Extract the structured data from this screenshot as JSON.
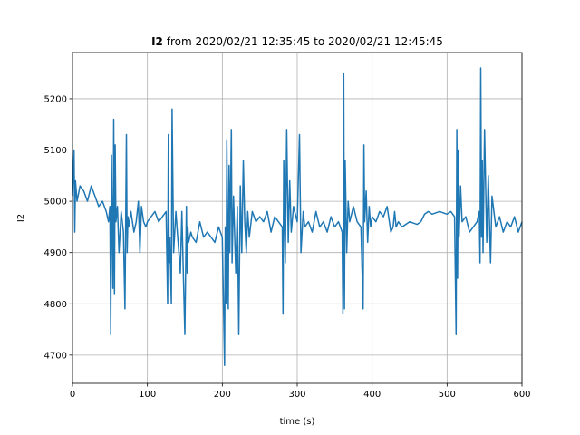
{
  "chart_data": {
    "type": "line",
    "title_bold": "I2",
    "title_rest": " from 2020/02/21 12:35:45 to 2020/02/21 12:45:45",
    "xlabel": "time (s)",
    "ylabel": "I2",
    "xlim": [
      0,
      600
    ],
    "ylim": [
      4645,
      5290
    ],
    "grid": true,
    "x_ticks": [
      0,
      100,
      200,
      300,
      400,
      500,
      600
    ],
    "x_tick_labels": [
      "0",
      "100",
      "200",
      "300",
      "400",
      "500",
      "600"
    ],
    "y_ticks": [
      4700,
      4800,
      4900,
      5000,
      5100,
      5200
    ],
    "y_tick_labels": [
      "4700",
      "4800",
      "4900",
      "5000",
      "5100",
      "5200"
    ],
    "series": [
      {
        "color": "#1f77b4",
        "x": [
          0,
          2,
          3,
          4,
          6,
          10,
          15,
          20,
          25,
          30,
          35,
          40,
          45,
          48,
          50,
          51,
          52,
          54,
          55,
          56,
          57,
          58,
          60,
          62,
          65,
          68,
          70,
          72,
          73,
          74,
          75,
          78,
          82,
          85,
          88,
          90,
          92,
          95,
          98,
          100,
          105,
          110,
          115,
          120,
          125,
          127,
          128,
          129,
          130,
          132,
          133,
          135,
          138,
          140,
          142,
          144,
          146,
          148,
          150,
          152,
          153,
          154,
          155,
          158,
          160,
          165,
          170,
          175,
          180,
          185,
          190,
          195,
          200,
          203,
          204,
          205,
          206,
          208,
          209,
          210,
          212,
          213,
          215,
          218,
          220,
          222,
          224,
          226,
          228,
          230,
          232,
          234,
          236,
          240,
          245,
          250,
          255,
          260,
          265,
          270,
          275,
          280,
          281,
          282,
          284,
          286,
          288,
          290,
          292,
          295,
          300,
          303,
          305,
          308,
          310,
          315,
          320,
          325,
          330,
          335,
          340,
          345,
          350,
          355,
          360,
          361,
          362,
          363,
          364,
          366,
          368,
          370,
          375,
          380,
          385,
          388,
          389,
          390,
          392,
          394,
          396,
          398,
          400,
          405,
          410,
          415,
          420,
          425,
          428,
          430,
          432,
          435,
          440,
          450,
          460,
          465,
          470,
          475,
          480,
          490,
          500,
          505,
          510,
          512,
          513,
          514,
          515,
          516,
          518,
          520,
          525,
          530,
          535,
          540,
          543,
          544,
          545,
          546,
          547,
          548,
          550,
          553,
          555,
          558,
          560,
          565,
          570,
          575,
          580,
          585,
          590,
          595,
          600
        ],
        "y": [
          5010,
          5100,
          4940,
          5040,
          5000,
          5030,
          5020,
          5000,
          5030,
          5010,
          4990,
          5000,
          4980,
          4960,
          4990,
          4740,
          5090,
          4830,
          5160,
          4820,
          5110,
          4960,
          4990,
          4900,
          4980,
          4940,
          4790,
          5130,
          4900,
          4970,
          4950,
          4980,
          4940,
          4960,
          5000,
          4900,
          4990,
          4960,
          4950,
          4960,
          4970,
          4980,
          4960,
          4970,
          4980,
          4800,
          5130,
          4880,
          4930,
          4800,
          5180,
          4900,
          4980,
          4940,
          4900,
          4860,
          4980,
          4860,
          4740,
          4990,
          4860,
          4950,
          4920,
          4940,
          4930,
          4920,
          4960,
          4930,
          4940,
          4930,
          4920,
          4950,
          4930,
          4680,
          4950,
          4800,
          5120,
          4790,
          5070,
          4900,
          5140,
          4880,
          5010,
          4860,
          4990,
          4740,
          5030,
          4900,
          5080,
          4960,
          4900,
          4980,
          4930,
          4980,
          4960,
          4970,
          4960,
          4980,
          4940,
          4970,
          4960,
          4950,
          4780,
          5080,
          4880,
          5140,
          4920,
          5040,
          4940,
          4990,
          4960,
          5130,
          4900,
          4980,
          4950,
          4960,
          4940,
          4980,
          4950,
          4960,
          4940,
          4970,
          4950,
          4960,
          4940,
          4780,
          5250,
          4790,
          5080,
          4900,
          5000,
          4960,
          4990,
          4960,
          4950,
          4790,
          5110,
          4960,
          5020,
          4920,
          4990,
          4950,
          4970,
          4960,
          4980,
          4970,
          4990,
          4940,
          4950,
          4980,
          4950,
          4960,
          4950,
          4960,
          4955,
          4960,
          4975,
          4980,
          4975,
          4980,
          4975,
          4980,
          4970,
          4740,
          5140,
          4850,
          5100,
          4930,
          5030,
          4960,
          4970,
          4940,
          4950,
          4960,
          4980,
          4880,
          5260,
          4930,
          5080,
          4900,
          5140,
          4920,
          5050,
          4880,
          5010,
          4950,
          4970,
          4940,
          4960,
          4950,
          4970,
          4940,
          4960
        ]
      }
    ]
  }
}
